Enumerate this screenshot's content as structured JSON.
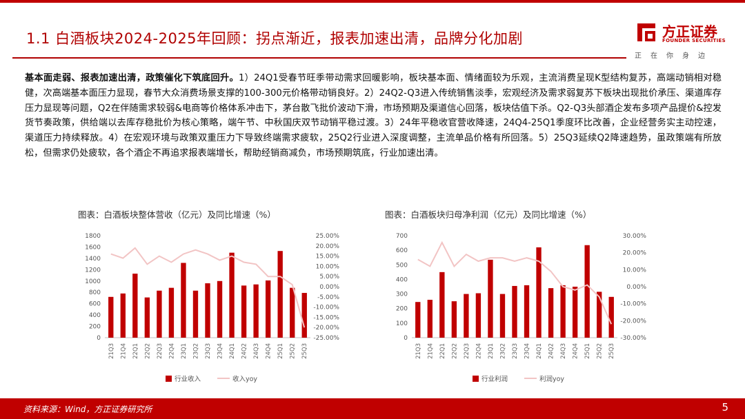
{
  "header": {
    "title": "1.1 白酒板块2024-2025年回顾：拐点渐近，报表加速出清，品牌分化加剧",
    "logo_name": "方正证券",
    "logo_en": "FOUNDER SECURITIES",
    "logo_slogan": "正在你身边"
  },
  "summary": {
    "lead": "基本面走弱、报表加速出清，政策催化下筑底回升。",
    "body": "1）24Q1受春节旺季带动需求回暖影响，板块基本面、情绪面较为乐观，主流消费呈现K型结构复苏，高端动销相对稳健，次高端基本面压力显现，春节大众消费场景支撑的100-300元价格带动销良好。2）24Q2-Q3进入传统销售淡季，宏观经济及需求弱复苏下板块出现批价承压、渠道库存压力显现等问题，Q2在伴随需求较弱&电商等价格体系冲击下，茅台散飞批价波动下滑，市场预期及渠道信心回落，板块估值下杀。Q2-Q3头部酒企发布多项产品提价&控发货节奏政策，供给端以去库存稳批价为核心策略，端午节、中秋国庆双节动销平稳过渡。3）24年平稳收官营收降速，24Q4-25Q1季度环比改善，企业经营务实主动控速，渠道压力持续释放。4）在宏观环境与政策双重压力下导致终端需求疲软，25Q2行业进入深度调整，主流单品价格有所回落。5）25Q3延续Q2降速趋势，虽政策端有所放松，但需求仍处疲软，各个酒企不再追求报表端增长，帮助经销商减负，市场预期筑底，行业加速出清。"
  },
  "chart_data": [
    {
      "type": "bar",
      "title": "图表：白酒板块整体营收（亿元）及同比增速（%）",
      "categories": [
        "21Q3",
        "21Q4",
        "22Q1",
        "22Q2",
        "22Q3",
        "22Q4",
        "23Q1",
        "23Q2",
        "23Q3",
        "23Q4",
        "24Q1",
        "24Q2",
        "24Q3",
        "24Q4",
        "25Q1",
        "25Q2",
        "25Q3"
      ],
      "series": [
        {
          "name": "行业收入",
          "kind": "bar",
          "axis": "left",
          "values": [
            720,
            780,
            1130,
            710,
            830,
            880,
            1320,
            830,
            960,
            1000,
            1500,
            920,
            940,
            1010,
            1530,
            880,
            790
          ]
        },
        {
          "name": "收入yoy",
          "kind": "line",
          "axis": "right",
          "values": [
            16,
            14,
            19,
            11,
            15,
            12,
            16,
            18,
            16,
            13,
            15,
            12,
            11,
            5,
            5,
            1,
            -20
          ]
        }
      ],
      "ylim_left": [
        0,
        1800
      ],
      "yticks_left": [
        "0",
        "200",
        "400",
        "600",
        "800",
        "1000",
        "1200",
        "1400",
        "1600",
        "1800"
      ],
      "ylim_right": [
        -25,
        25
      ],
      "yticks_right": [
        "-25.00%",
        "-20.00%",
        "-15.00%",
        "-10.00%",
        "-5.00%",
        "0.00%",
        "5.00%",
        "10.00%",
        "15.00%",
        "20.00%",
        "25.00%"
      ],
      "colors": {
        "bar": "#c00000",
        "line": "#f2c4c4"
      }
    },
    {
      "type": "bar",
      "title": "图表：白酒板块归母净利润（亿元）及同比增速（%）",
      "categories": [
        "21Q3",
        "21Q4",
        "22Q1",
        "22Q2",
        "22Q3",
        "22Q4",
        "23Q1",
        "23Q2",
        "23Q3",
        "23Q4",
        "24Q1",
        "24Q2",
        "24Q3",
        "24Q4",
        "25Q1",
        "25Q2",
        "25Q3"
      ],
      "series": [
        {
          "name": "行业利润",
          "kind": "bar",
          "axis": "left",
          "values": [
            245,
            260,
            450,
            250,
            300,
            305,
            535,
            300,
            355,
            360,
            620,
            340,
            360,
            350,
            635,
            315,
            280
          ]
        },
        {
          "name": "利润yoy",
          "kind": "line",
          "axis": "right",
          "values": [
            16,
            12,
            26,
            12,
            19,
            15,
            17,
            17,
            15,
            17,
            15,
            9,
            0,
            -2,
            1,
            -6,
            -22
          ]
        }
      ],
      "ylim_left": [
        0,
        700
      ],
      "yticks_left": [
        "0",
        "100",
        "200",
        "300",
        "400",
        "500",
        "600",
        "700"
      ],
      "ylim_right": [
        -30,
        30
      ],
      "yticks_right": [
        "-30.00%",
        "-20.00%",
        "-10.00%",
        "0.00%",
        "10.00%",
        "20.00%",
        "30.00%"
      ],
      "colors": {
        "bar": "#c00000",
        "line": "#f2c4c4"
      }
    }
  ],
  "footer": {
    "source": "资料来源：Wind，方正证券研究所",
    "page": "5"
  }
}
